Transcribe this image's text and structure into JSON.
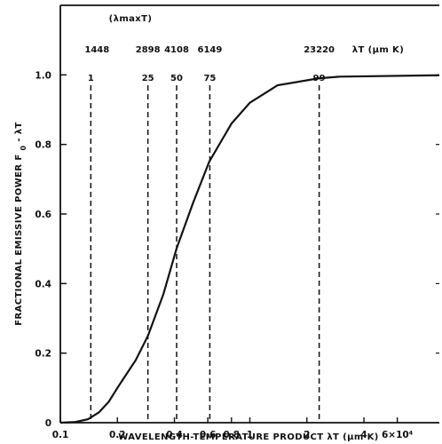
{
  "chart_data": {
    "type": "line",
    "title": "",
    "xlabel": "WAVELENGTH-TEMPERATURE PRODUCT λT (μm K)",
    "ylabel_prefix": "FRACTIONAL EMISSIVE POWER F",
    "ylabel_sub": "0",
    "ylabel_suffix": " - λT",
    "top_group_label": "(λmaxT)",
    "top_unit_label": "λT (μm K)",
    "x_scale": "log",
    "xlim": [
      0.1,
      10
    ],
    "ylim": [
      0,
      1.2
    ],
    "x_ticks": [
      {
        "value": 0.1,
        "label": "0.1"
      },
      {
        "value": 0.2,
        "label": "0.2"
      },
      {
        "value": 0.4,
        "label": "0.4"
      },
      {
        "value": 0.6,
        "label": "0.6"
      },
      {
        "value": 0.8,
        "label": "0.8"
      },
      {
        "value": 1,
        "label": "1"
      },
      {
        "value": 2,
        "label": "2"
      },
      {
        "value": 4,
        "label": "4"
      },
      {
        "value": 6,
        "label": "6×10⁴"
      }
    ],
    "y_ticks": [
      {
        "value": 0,
        "label": "0"
      },
      {
        "value": 0.2,
        "label": "0.2"
      },
      {
        "value": 0.4,
        "label": "0.4"
      },
      {
        "value": 0.6,
        "label": "0.6"
      },
      {
        "value": 0.8,
        "label": "0.8"
      },
      {
        "value": 1.0,
        "label": "1.0"
      }
    ],
    "reference_lines": [
      {
        "x": 0.1448,
        "percent_label": "1",
        "value_label": "1448"
      },
      {
        "x": 0.2898,
        "percent_label": "25",
        "value_label": "2898"
      },
      {
        "x": 0.4108,
        "percent_label": "50",
        "value_label": "4108"
      },
      {
        "x": 0.6149,
        "percent_label": "75",
        "value_label": "6149"
      },
      {
        "x": 2.322,
        "percent_label": "99",
        "value_label": "23220"
      }
    ],
    "series": [
      {
        "points": [
          {
            "x": 0.1,
            "y": 0.0
          },
          {
            "x": 0.12,
            "y": 0.002
          },
          {
            "x": 0.14,
            "y": 0.01
          },
          {
            "x": 0.16,
            "y": 0.03
          },
          {
            "x": 0.18,
            "y": 0.06
          },
          {
            "x": 0.2,
            "y": 0.1
          },
          {
            "x": 0.25,
            "y": 0.18
          },
          {
            "x": 0.29,
            "y": 0.25
          },
          {
            "x": 0.35,
            "y": 0.37
          },
          {
            "x": 0.41,
            "y": 0.5
          },
          {
            "x": 0.5,
            "y": 0.63
          },
          {
            "x": 0.61,
            "y": 0.75
          },
          {
            "x": 0.8,
            "y": 0.86
          },
          {
            "x": 1.0,
            "y": 0.92
          },
          {
            "x": 1.4,
            "y": 0.97
          },
          {
            "x": 2.3,
            "y": 0.99
          },
          {
            "x": 3.0,
            "y": 0.995
          },
          {
            "x": 10.0,
            "y": 0.999
          }
        ]
      }
    ]
  }
}
